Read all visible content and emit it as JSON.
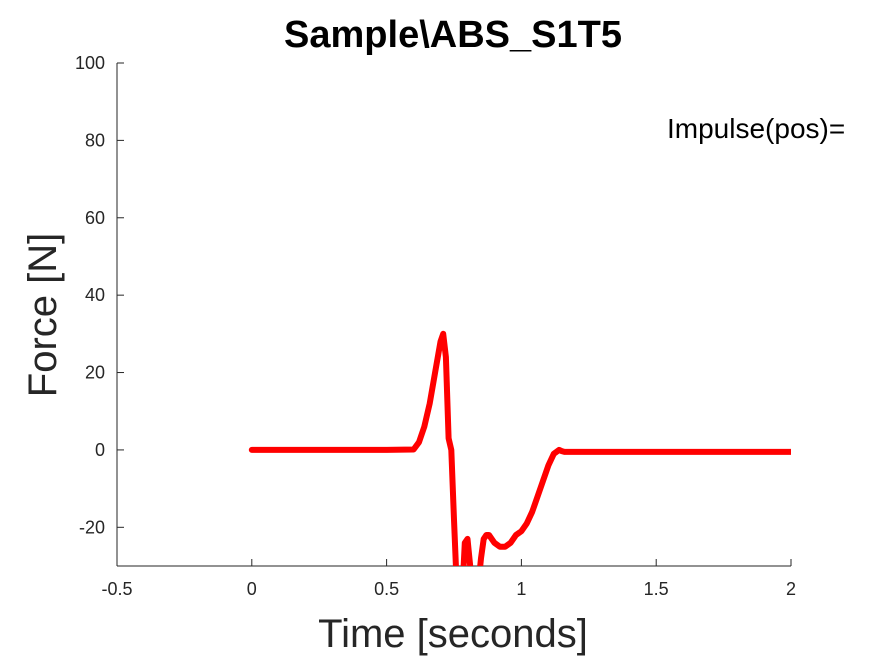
{
  "chart_data": {
    "type": "line",
    "title": "Sample\\ABS_S1T5",
    "xlabel": "Time [seconds]",
    "ylabel": "Force [N]",
    "xlim": [
      -0.5,
      2
    ],
    "ylim": [
      -30,
      100
    ],
    "xticks": [
      -0.5,
      0,
      0.5,
      1,
      1.5,
      2
    ],
    "yticks": [
      -20,
      0,
      20,
      40,
      60,
      80,
      100
    ],
    "xtick_labels": [
      "-0.5",
      "0",
      "0.5",
      "1",
      "1.5",
      "2"
    ],
    "ytick_labels": [
      "-20",
      "0",
      "20",
      "40",
      "60",
      "80",
      "100"
    ],
    "grid": false,
    "annotation": "Impulse(pos)=",
    "series": [
      {
        "name": "Force",
        "color": "#ff0000",
        "x": [
          0,
          0.1,
          0.2,
          0.3,
          0.4,
          0.5,
          0.6,
          0.62,
          0.64,
          0.66,
          0.68,
          0.7,
          0.71,
          0.72,
          0.73,
          0.74,
          0.75,
          0.76,
          0.77,
          0.78,
          0.79,
          0.8,
          0.81,
          0.82,
          0.83,
          0.84,
          0.85,
          0.86,
          0.87,
          0.88,
          0.9,
          0.92,
          0.94,
          0.96,
          0.98,
          1.0,
          1.02,
          1.04,
          1.06,
          1.08,
          1.1,
          1.12,
          1.14,
          1.15,
          1.16,
          1.2,
          1.4,
          1.6,
          1.8,
          2.0
        ],
        "y": [
          0,
          0,
          0,
          0,
          0,
          0,
          0.1,
          2,
          6,
          12,
          20,
          28,
          30,
          24,
          3,
          0,
          -18,
          -35,
          -40,
          -38,
          -24,
          -23,
          -30,
          -37,
          -40,
          -35,
          -28,
          -23,
          -22,
          -22,
          -24,
          -25,
          -25,
          -24,
          -22,
          -21,
          -19,
          -16,
          -12,
          -8,
          -4,
          -1,
          0,
          -0.3,
          -0.5,
          -0.5,
          -0.5,
          -0.5,
          -0.5,
          -0.5
        ]
      }
    ]
  }
}
